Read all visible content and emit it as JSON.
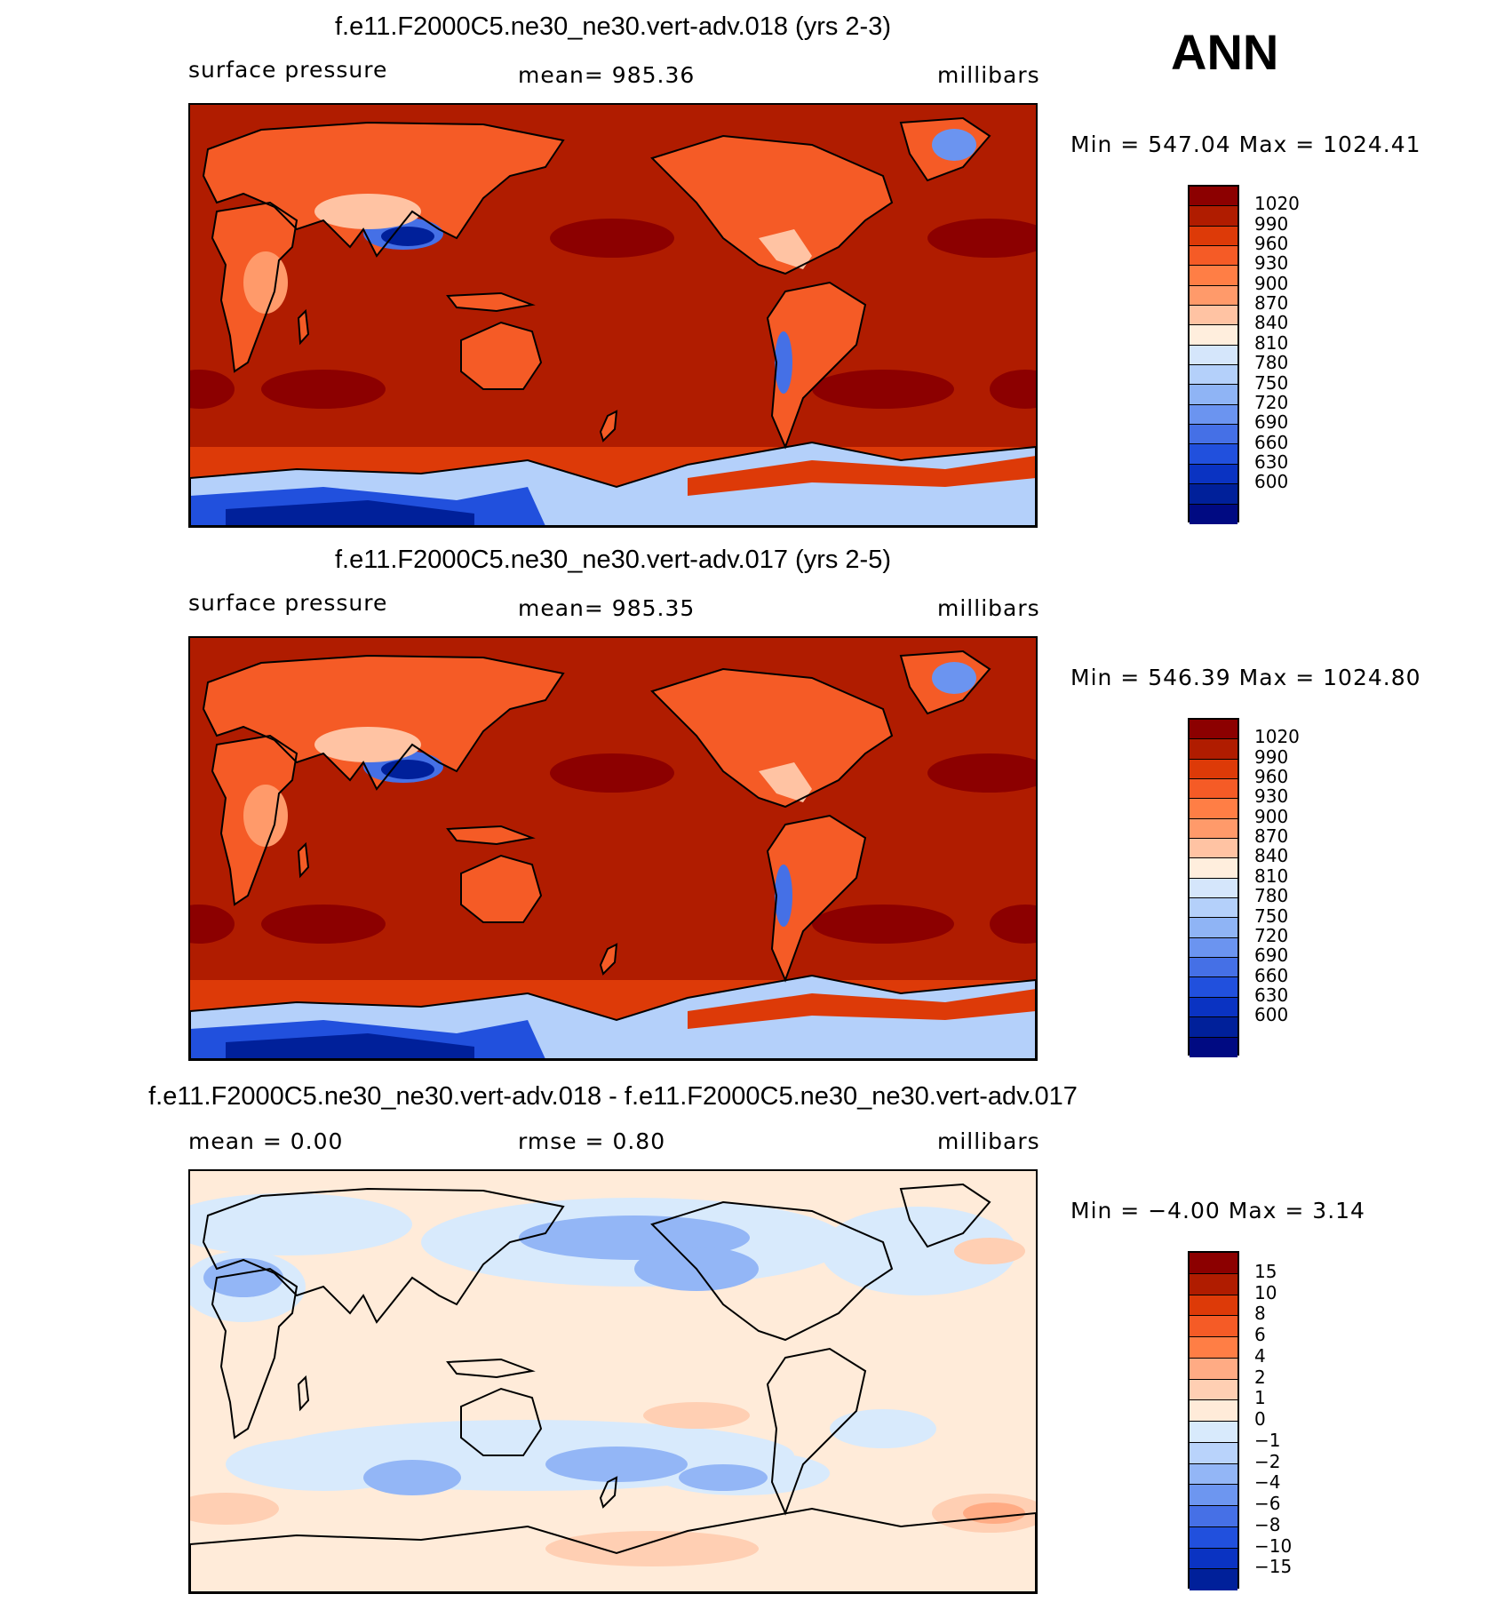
{
  "season_label": "ANN",
  "colors": {
    "abs_palette": [
      "#8c0000",
      "#b01c00",
      "#dd3a08",
      "#f55b26",
      "#ff7e45",
      "#ff9a6a",
      "#ffc3a3",
      "#ffeedd",
      "#d5e6fb",
      "#b4d0fa",
      "#8fb4f5",
      "#6b94f0",
      "#4570e6",
      "#2150dd",
      "#0a33c2",
      "#00209a",
      "#000a82"
    ],
    "diff_palette": [
      "#8c0000",
      "#b01c00",
      "#dd3a08",
      "#f55b26",
      "#ff7e45",
      "#ffab84",
      "#ffcfb3",
      "#ffebd9",
      "#d8eafc",
      "#b9d3fb",
      "#93b6f6",
      "#6d96f0",
      "#4670e6",
      "#2150dd",
      "#0a33c2",
      "#00209a"
    ],
    "coastline": "#000000"
  },
  "chart_data": [
    {
      "type": "heatmap",
      "title": "f.e11.F2000C5.ne30_ne30.vert-adv.018 (yrs 2-3)",
      "left_label": "surface  pressure",
      "center_label": "mean=  985.36",
      "mean": 985.36,
      "units": "millibars",
      "minmax_text": "Min  =  547.04  Max  =  1024.41",
      "min": 547.04,
      "max": 1024.41,
      "colorbar_levels": [
        "1020",
        "990",
        "960",
        "930",
        "900",
        "870",
        "840",
        "810",
        "780",
        "750",
        "720",
        "690",
        "660",
        "630",
        "600"
      ],
      "variant": "a"
    },
    {
      "type": "heatmap",
      "title": "f.e11.F2000C5.ne30_ne30.vert-adv.017 (yrs 2-5)",
      "left_label": "surface  pressure",
      "center_label": "mean=  985.35",
      "mean": 985.35,
      "units": "millibars",
      "minmax_text": "Min  =  546.39  Max  =  1024.80",
      "min": 546.39,
      "max": 1024.8,
      "colorbar_levels": [
        "1020",
        "990",
        "960",
        "930",
        "900",
        "870",
        "840",
        "810",
        "780",
        "750",
        "720",
        "690",
        "660",
        "630",
        "600"
      ],
      "variant": "b"
    },
    {
      "type": "heatmap",
      "title": "f.e11.F2000C5.ne30_ne30.vert-adv.018 - f.e11.F2000C5.ne30_ne30.vert-adv.017",
      "left_label": "mean  =      0.00",
      "center_label": "rmse  =      0.80",
      "mean": 0.0,
      "rmse": 0.8,
      "units": "millibars",
      "minmax_text": "Min  =    −4.00  Max  =      3.14",
      "min": -4.0,
      "max": 3.14,
      "colorbar_levels": [
        "15",
        "10",
        "8",
        "6",
        "4",
        "2",
        "1",
        "0",
        "−1",
        "−2",
        "−4",
        "−6",
        "−8",
        "−10",
        "−15"
      ],
      "variant": "diff"
    }
  ]
}
